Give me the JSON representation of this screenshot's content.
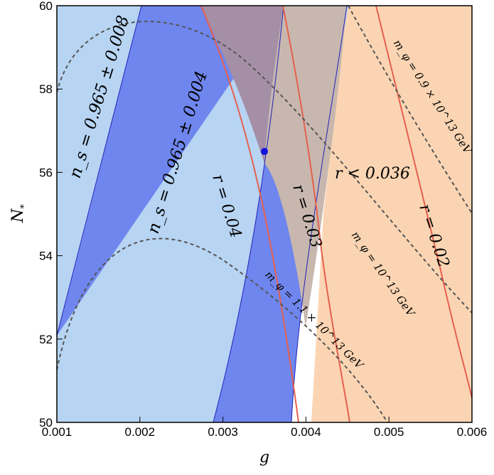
{
  "chart_data": {
    "type": "region",
    "xlabel": "g",
    "ylabel": "N",
    "ylabel_sub": "*",
    "xlim": [
      0.001,
      0.006
    ],
    "ylim": [
      50,
      60
    ],
    "x_ticks": [
      "0.001",
      "0.002",
      "0.003",
      "0.004",
      "0.005",
      "0.006"
    ],
    "y_ticks": [
      "50",
      "52",
      "54",
      "56",
      "58",
      "60"
    ],
    "colors": {
      "ns_008": "#b7d4f3",
      "ns_004": "#6f86ee",
      "r_bound": "#fbd5b3",
      "overlap": "#a58fa6",
      "overlap_light": "#c8b7ae",
      "r_line": "#e5604f",
      "mass_line": "#555555",
      "point": "#1010e0",
      "edge": "#2222bb"
    },
    "bands": {
      "ns_008": [
        [
          0.001,
          51.2
        ],
        [
          0.00186,
          60
        ],
        [
          0.00381,
          50
        ],
        [
          0.00271,
          50
        ]
      ],
      "ns_004": [
        [
          0.001,
          51.2
        ],
        [
          0.0017,
          60
        ],
        [
          0.00368,
          60
        ],
        [
          0.00385,
          50
        ],
        [
          0.00289,
          50
        ]
      ]
    },
    "r_lines": [
      {
        "label": "r = 0.04",
        "points": [
          [
            0.0036,
            60
          ],
          [
            0.00356,
            56.5
          ],
          [
            0.0039,
            50
          ]
        ]
      },
      {
        "label": "r = 0.03",
        "points": [
          [
            0.004,
            60
          ],
          [
            0.0041,
            55
          ],
          [
            0.00417,
            50
          ]
        ]
      },
      {
        "label": "r = 0.02",
        "points": [
          [
            0.00495,
            60
          ],
          [
            0.0053,
            55
          ],
          [
            0.0056,
            50
          ]
        ]
      }
    ],
    "r_bound_label": "r < 0.036",
    "mass_curves": [
      {
        "label": "m_φ = 0.9 × 10^13 GeV",
        "points": [
          [
            0.0049,
            59.7
          ],
          [
            0.0055,
            57.6
          ],
          [
            0.006,
            55.6
          ]
        ]
      },
      {
        "label": "m_φ = 10^13 GeV",
        "points": [
          [
            0.0035,
            59.8
          ],
          [
            0.0045,
            56.2
          ],
          [
            0.006,
            51.0
          ]
        ]
      },
      {
        "label": "m_φ = 1.1 × 10^13 GeV",
        "points": [
          [
            0.0017,
            60
          ],
          [
            0.003,
            55.3
          ],
          [
            0.0053,
            50
          ]
        ]
      }
    ],
    "point": [
      0.0035,
      56.5
    ],
    "annotations": [
      {
        "text": "n_s = 0.965 ± 0.008"
      },
      {
        "text": "n_s = 0.965 ± 0.004"
      }
    ]
  }
}
